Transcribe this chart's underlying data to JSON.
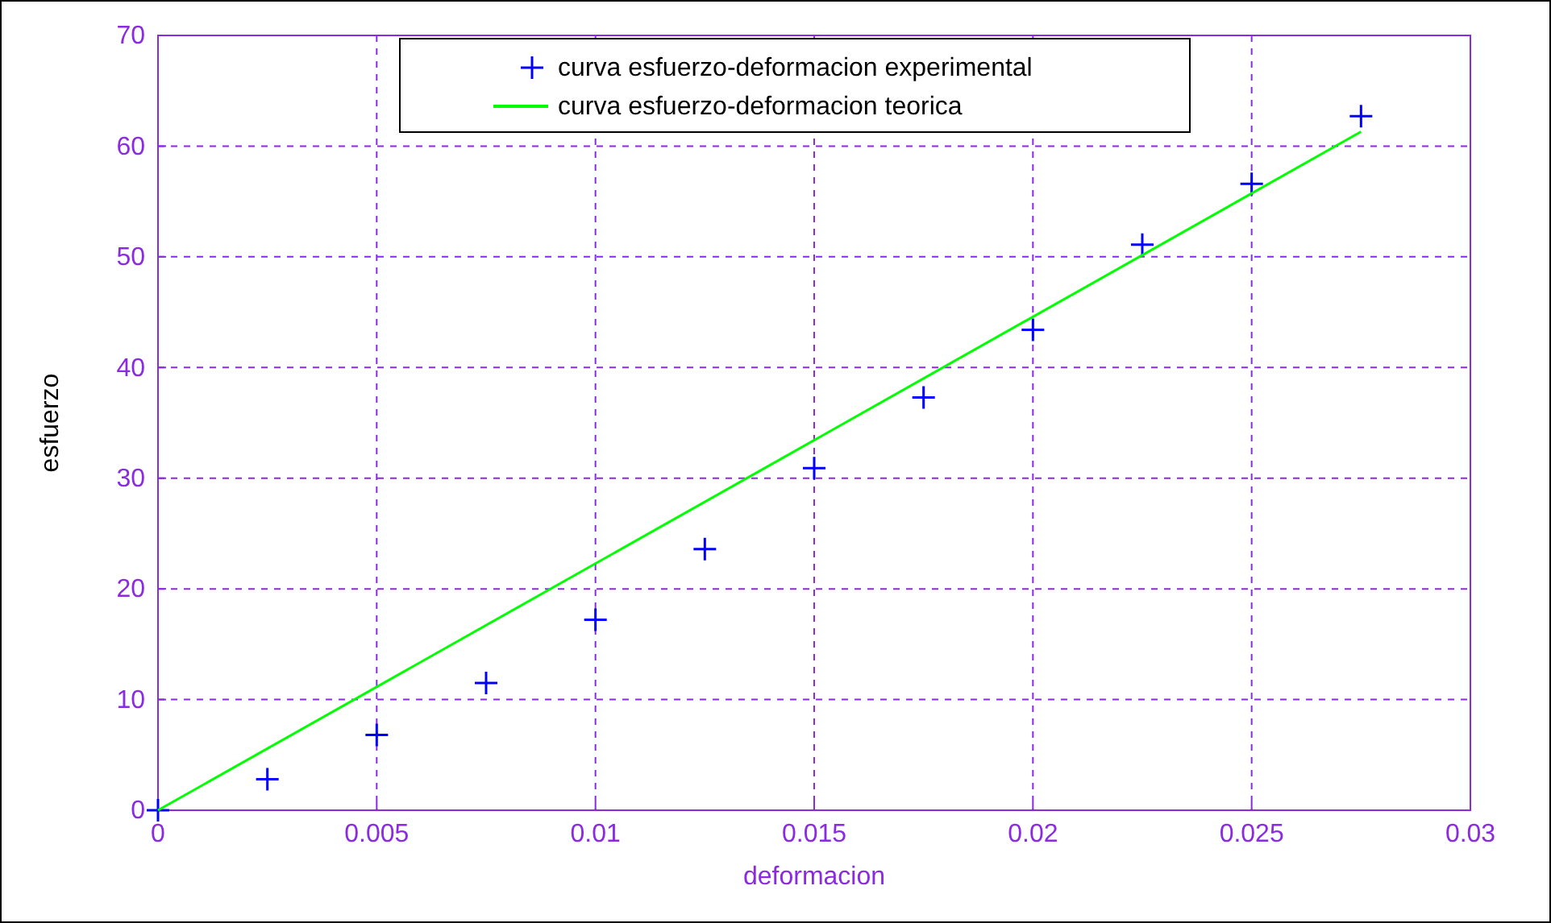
{
  "chart_data": {
    "type": "scatter",
    "xlabel": "deformacion",
    "ylabel": "esfuerzo",
    "xlim": [
      0,
      0.03
    ],
    "xticks": [
      0,
      0.005,
      0.01,
      0.015,
      0.02,
      0.025,
      0.03
    ],
    "ylim": [
      0,
      70
    ],
    "yticks": [
      0,
      10,
      20,
      30,
      40,
      50,
      60,
      70
    ],
    "grid": true,
    "legend": "top",
    "series": [
      {
        "name": "curva esfuerzo-deformacion experimental",
        "marker": "cross",
        "color": "#0000ff",
        "x": [
          0,
          0.0025,
          0.005,
          0.0075,
          0.01,
          0.0125,
          0.015,
          0.0175,
          0.02,
          0.0225,
          0.025,
          0.0275
        ],
        "values": [
          0,
          2.8,
          6.8,
          11.5,
          17.2,
          23.6,
          30.9,
          37.3,
          43.4,
          51.1,
          56.6,
          62.7
        ]
      },
      {
        "name": "curva esfuerzo-deformacion teorica",
        "type": "line",
        "color": "#00ff00",
        "line_style": "solid",
        "x": [
          0,
          0.0275
        ],
        "values": [
          0,
          61.3
        ]
      }
    ]
  }
}
